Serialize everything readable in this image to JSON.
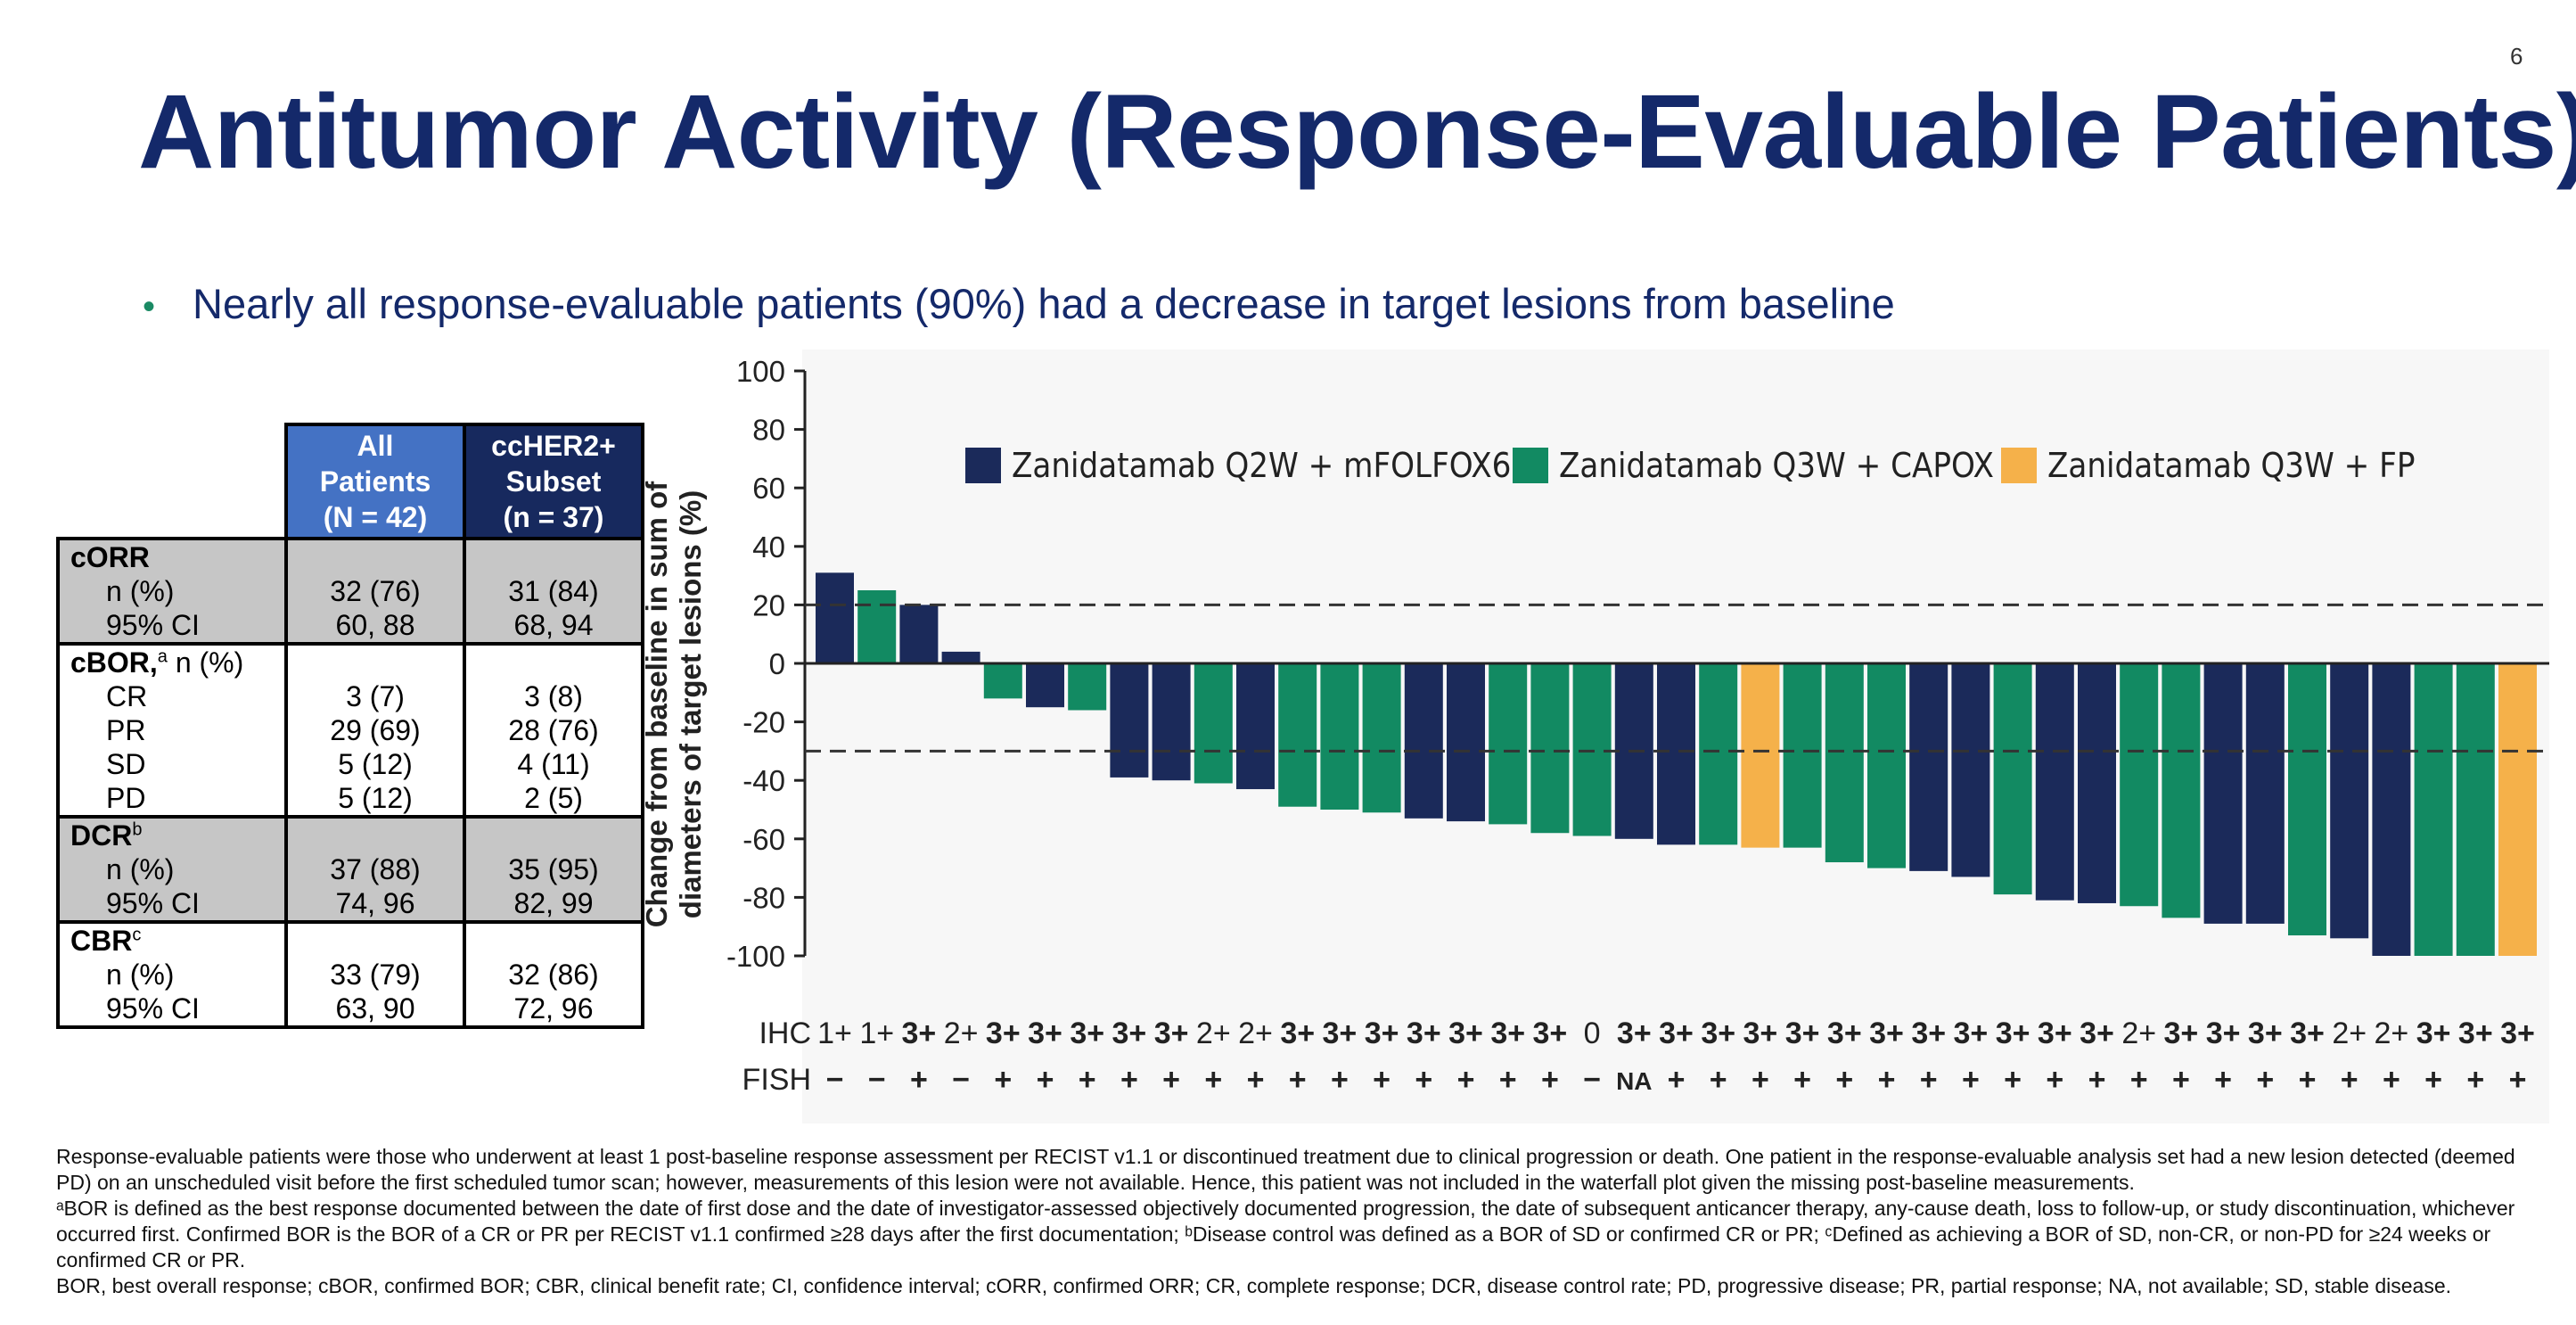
{
  "page_number": "6",
  "title": "Antitumor Activity (Response-Evaluable Patients)",
  "bullet": "Nearly all response-evaluable patients (90%) had a decrease in target lesions from baseline",
  "table": {
    "headers": {
      "all": [
        "All",
        "Patients",
        "(N = 42)"
      ],
      "sub": [
        "ccHER2+",
        "Subset",
        "(n = 37)"
      ]
    },
    "corr": {
      "label": "cORR",
      "rows": [
        {
          "label": "n (%)",
          "all": "32 (76)",
          "sub": "31 (84)"
        },
        {
          "label": "95% CI",
          "all": "60, 88",
          "sub": "68, 94"
        }
      ]
    },
    "cbor": {
      "label": "cBOR,",
      "sup": "a",
      "suffix": " n (%)",
      "rows": [
        {
          "label": "CR",
          "all": "3 (7)",
          "sub": "3 (8)"
        },
        {
          "label": "PR",
          "all": "29 (69)",
          "sub": "28 (76)"
        },
        {
          "label": "SD",
          "all": "5 (12)",
          "sub": "4 (11)"
        },
        {
          "label": "PD",
          "all": "5 (12)",
          "sub": "2 (5)"
        }
      ]
    },
    "dcr": {
      "label": "DCR",
      "sup": "b",
      "rows": [
        {
          "label": "n (%)",
          "all": "37 (88)",
          "sub": "35 (95)"
        },
        {
          "label": "95% CI",
          "all": "74, 96",
          "sub": "82, 99"
        }
      ]
    },
    "cbr": {
      "label": "CBR",
      "sup": "c",
      "rows": [
        {
          "label": "n (%)",
          "all": "33 (79)",
          "sub": "32 (86)"
        },
        {
          "label": "95% CI",
          "all": "63, 90",
          "sub": "72, 96"
        }
      ]
    }
  },
  "chart_data": {
    "type": "bar",
    "ylabel_lines": [
      "Change from baseline in sum of",
      "diameters of target lesions (%)"
    ],
    "ylim": [
      -100,
      100
    ],
    "yticks": [
      100,
      80,
      60,
      40,
      20,
      0,
      -20,
      -40,
      -60,
      -80,
      -100
    ],
    "reference_lines": [
      20,
      -30
    ],
    "legend": [
      {
        "name": "Zanidatamab Q2W + mFOLFOX6",
        "color": "#1b2a5a"
      },
      {
        "name": "Zanidatamab Q3W + CAPOX",
        "color": "#128a62"
      },
      {
        "name": "Zanidatamab Q3W + FP",
        "color": "#f5b14a"
      }
    ],
    "colors": {
      "Q2W": "#1b2a5a",
      "CAPOX": "#128a62",
      "FP": "#f5b14a"
    },
    "values": [
      31,
      25,
      20,
      4,
      -12,
      -15,
      -16,
      -39,
      -40,
      -41,
      -43,
      -49,
      -50,
      -51,
      -53,
      -54,
      -55,
      -58,
      -59,
      -60,
      -62,
      -62,
      -63,
      -63,
      -68,
      -70,
      -71,
      -73,
      -79,
      -81,
      -82,
      -83,
      -87,
      -89,
      -89,
      -93,
      -94,
      -100,
      -100,
      -100,
      -100
    ],
    "groups": [
      "Q2W",
      "CAPOX",
      "Q2W",
      "Q2W",
      "CAPOX",
      "Q2W",
      "CAPOX",
      "Q2W",
      "Q2W",
      "CAPOX",
      "Q2W",
      "CAPOX",
      "CAPOX",
      "CAPOX",
      "Q2W",
      "Q2W",
      "CAPOX",
      "CAPOX",
      "CAPOX",
      "Q2W",
      "Q2W",
      "CAPOX",
      "FP",
      "CAPOX",
      "CAPOX",
      "CAPOX",
      "Q2W",
      "Q2W",
      "CAPOX",
      "Q2W",
      "Q2W",
      "CAPOX",
      "CAPOX",
      "Q2W",
      "Q2W",
      "CAPOX",
      "Q2W",
      "Q2W",
      "CAPOX",
      "CAPOX",
      "FP"
    ],
    "ihc_label": "IHC",
    "ihc": [
      "1+",
      "1+",
      "3+",
      "2+",
      "3+",
      "3+",
      "3+",
      "3+",
      "3+",
      "2+",
      "2+",
      "3+",
      "3+",
      "3+",
      "3+",
      "3+",
      "3+",
      "3+",
      "0",
      "3+",
      "3+",
      "3+",
      "3+",
      "3+",
      "3+",
      "3+",
      "3+",
      "3+",
      "3+",
      "3+",
      "3+",
      "2+",
      "3+",
      "3+",
      "3+",
      "3+",
      "2+",
      "2+",
      "3+",
      "3+",
      "3+"
    ],
    "fish_label": "FISH",
    "fish": [
      "−",
      "−",
      "+",
      "−",
      "+",
      "+",
      "+",
      "+",
      "+",
      "+",
      "+",
      "+",
      "+",
      "+",
      "+",
      "+",
      "+",
      "+",
      "−",
      "NA",
      "+",
      "+",
      "+",
      "+",
      "+",
      "+",
      "+",
      "+",
      "+",
      "+",
      "+",
      "+",
      "+",
      "+",
      "+",
      "+",
      "+",
      "+",
      "+",
      "+",
      "+"
    ]
  },
  "footnotes": [
    "Response-evaluable patients were those who underwent at least 1 post-baseline response assessment per RECIST v1.1 or discontinued treatment due to clinical progression or death. One patient in the response-evaluable analysis set had a new lesion detected (deemed PD) on an unscheduled visit before the first scheduled tumor scan; however, measurements of this lesion were not available. Hence, this patient was not included in the waterfall plot given the missing post-baseline measurements.",
    "ᵃBOR is defined as the best response documented between the date of first dose and the date of investigator-assessed objectively documented progression, the date of subsequent anticancer therapy, any-cause death, loss to follow-up, or study discontinuation, whichever occurred first. Confirmed BOR is the BOR of a CR or PR per RECIST v1.1 confirmed ≥28 days after the first documentation; ᵇDisease control was defined as a BOR of SD or confirmed CR or PR; ᶜDefined as achieving a BOR of SD, non-CR, or non-PD for ≥24 weeks or confirmed CR or PR.",
    "BOR, best overall response; cBOR, confirmed BOR; CBR, clinical benefit rate; CI, confidence interval; cORR, confirmed ORR; CR, complete response; DCR, disease control rate; PD, progressive disease; PR, partial response; NA, not available; SD, stable disease."
  ]
}
